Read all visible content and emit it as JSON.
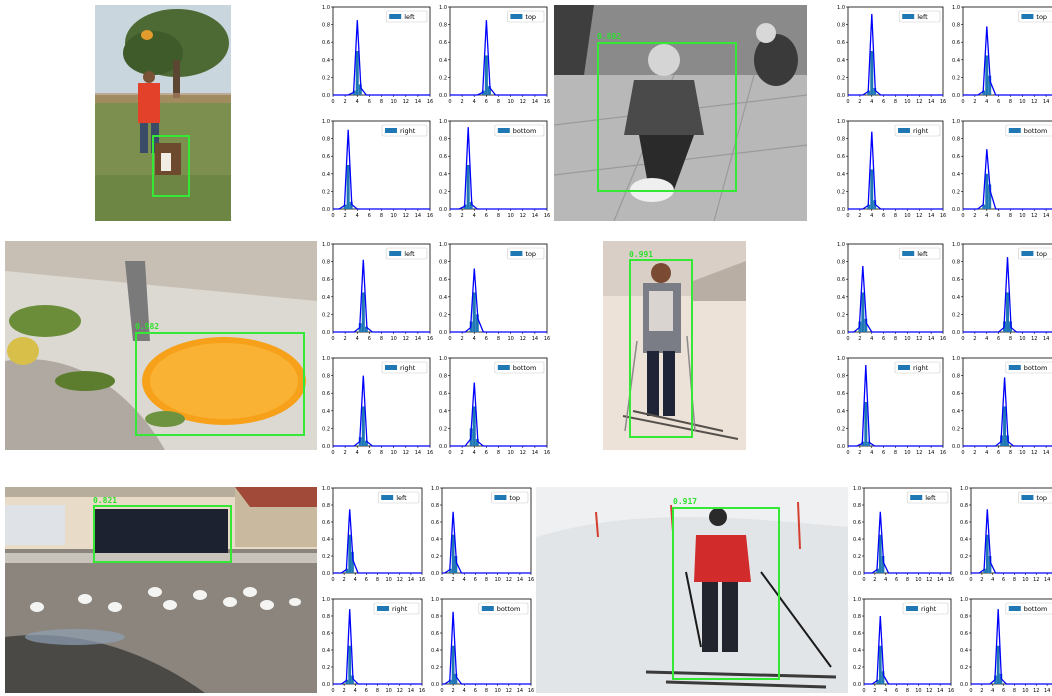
{
  "colors": {
    "bar": "#1f77b4",
    "line": "#0000ff",
    "box": "#35e835",
    "score": "#2fe02f"
  },
  "x_ticks": [
    "0",
    "2",
    "4",
    "6",
    "8",
    "10",
    "12",
    "14",
    "16"
  ],
  "y_ticks": [
    "0.0",
    "0.2",
    "0.4",
    "0.6",
    "0.8",
    "1.0"
  ],
  "examples": [
    {
      "image": "man-and-dog-in-park",
      "score": "",
      "chart_data": {
        "type": "bar",
        "xlim": [
          0,
          16
        ],
        "ylim": [
          0,
          1.0
        ],
        "series": [
          {
            "name": "left",
            "bars": [
              [
                3.5,
                0.05
              ],
              [
                4,
                0.5
              ],
              [
                4.5,
                0.12
              ]
            ],
            "line": [
              [
                2.5,
                0
              ],
              [
                3.4,
                0.03
              ],
              [
                4,
                0.85
              ],
              [
                4.6,
                0.08
              ],
              [
                5.5,
                0
              ]
            ]
          },
          {
            "name": "top",
            "bars": [
              [
                5.5,
                0.05
              ],
              [
                6,
                0.45
              ],
              [
                6.5,
                0.1
              ]
            ],
            "line": [
              [
                4.5,
                0
              ],
              [
                5.4,
                0.03
              ],
              [
                6,
                0.85
              ],
              [
                6.6,
                0.08
              ],
              [
                7.5,
                0
              ]
            ]
          },
          {
            "name": "right",
            "bars": [
              [
                2,
                0.05
              ],
              [
                2.5,
                0.5
              ],
              [
                3,
                0.08
              ]
            ],
            "line": [
              [
                1,
                0
              ],
              [
                1.9,
                0.04
              ],
              [
                2.5,
                0.9
              ],
              [
                3.1,
                0.05
              ],
              [
                4,
                0
              ]
            ]
          },
          {
            "name": "bottom",
            "bars": [
              [
                2.5,
                0.05
              ],
              [
                3,
                0.5
              ],
              [
                3.5,
                0.08
              ]
            ],
            "line": [
              [
                1.5,
                0
              ],
              [
                2.4,
                0.03
              ],
              [
                3,
                0.93
              ],
              [
                3.6,
                0.05
              ],
              [
                4.5,
                0
              ]
            ]
          }
        ]
      }
    },
    {
      "image": "boy-on-sled-black-and-white",
      "score": "0.892",
      "chart_data": {
        "type": "bar",
        "xlim": [
          0,
          16
        ],
        "ylim": [
          0,
          1.0
        ],
        "series": [
          {
            "name": "left",
            "bars": [
              [
                3.5,
                0.05
              ],
              [
                4,
                0.5
              ],
              [
                4.5,
                0.08
              ]
            ],
            "line": [
              [
                2.5,
                0
              ],
              [
                3.4,
                0.04
              ],
              [
                4,
                0.92
              ],
              [
                4.6,
                0.05
              ],
              [
                5.5,
                0
              ]
            ]
          },
          {
            "name": "top",
            "bars": [
              [
                3.5,
                0.05
              ],
              [
                4,
                0.45
              ],
              [
                4.5,
                0.22
              ]
            ],
            "line": [
              [
                2.5,
                0
              ],
              [
                3.4,
                0.04
              ],
              [
                4,
                0.78
              ],
              [
                4.6,
                0.15
              ],
              [
                5.5,
                0
              ]
            ]
          },
          {
            "name": "right",
            "bars": [
              [
                3.5,
                0.05
              ],
              [
                4,
                0.45
              ],
              [
                4.5,
                0.1
              ]
            ],
            "line": [
              [
                2.5,
                0
              ],
              [
                3.4,
                0.04
              ],
              [
                4,
                0.88
              ],
              [
                4.6,
                0.05
              ],
              [
                5.5,
                0
              ]
            ]
          },
          {
            "name": "bottom",
            "bars": [
              [
                3.5,
                0.05
              ],
              [
                4,
                0.4
              ],
              [
                4.5,
                0.28
              ]
            ],
            "line": [
              [
                2.5,
                0
              ],
              [
                3.4,
                0.05
              ],
              [
                4,
                0.68
              ],
              [
                4.6,
                0.2
              ],
              [
                5.5,
                0
              ]
            ]
          }
        ]
      }
    },
    {
      "image": "orange-slice-on-plate",
      "score": "0.982",
      "chart_data": {
        "type": "bar",
        "xlim": [
          0,
          16
        ],
        "ylim": [
          0,
          1.0
        ],
        "series": [
          {
            "name": "left",
            "bars": [
              [
                4.5,
                0.1
              ],
              [
                5,
                0.45
              ],
              [
                5.5,
                0.06
              ]
            ],
            "line": [
              [
                3.5,
                0
              ],
              [
                4.4,
                0.05
              ],
              [
                5,
                0.82
              ],
              [
                5.6,
                0.05
              ],
              [
                6.5,
                0
              ]
            ]
          },
          {
            "name": "top",
            "bars": [
              [
                3.5,
                0.12
              ],
              [
                4,
                0.45
              ],
              [
                4.5,
                0.2
              ]
            ],
            "line": [
              [
                2.5,
                0
              ],
              [
                3.4,
                0.05
              ],
              [
                4,
                0.72
              ],
              [
                4.6,
                0.15
              ],
              [
                5.5,
                0
              ]
            ]
          },
          {
            "name": "right",
            "bars": [
              [
                4.5,
                0.1
              ],
              [
                5,
                0.45
              ],
              [
                5.5,
                0.06
              ]
            ],
            "line": [
              [
                3.5,
                0
              ],
              [
                4.4,
                0.05
              ],
              [
                5,
                0.8
              ],
              [
                5.6,
                0.05
              ],
              [
                6.5,
                0
              ]
            ]
          },
          {
            "name": "bottom",
            "bars": [
              [
                3.5,
                0.2
              ],
              [
                4,
                0.45
              ],
              [
                4.5,
                0.08
              ]
            ],
            "line": [
              [
                2.5,
                0
              ],
              [
                3.4,
                0.08
              ],
              [
                4,
                0.72
              ],
              [
                4.6,
                0.05
              ],
              [
                5.5,
                0
              ]
            ]
          }
        ]
      }
    },
    {
      "image": "woman-skier-in-snow",
      "score": "0.991",
      "chart_data": {
        "type": "bar",
        "xlim": [
          0,
          16
        ],
        "ylim": [
          0,
          1.0
        ],
        "series": [
          {
            "name": "left",
            "bars": [
              [
                2,
                0.12
              ],
              [
                2.5,
                0.45
              ],
              [
                3,
                0.15
              ]
            ],
            "line": [
              [
                1,
                0
              ],
              [
                1.9,
                0.05
              ],
              [
                2.5,
                0.75
              ],
              [
                3.1,
                0.1
              ],
              [
                4,
                0
              ]
            ]
          },
          {
            "name": "top",
            "bars": [
              [
                7,
                0.12
              ],
              [
                7.5,
                0.45
              ],
              [
                8,
                0.12
              ]
            ],
            "line": [
              [
                6,
                0
              ],
              [
                6.9,
                0.05
              ],
              [
                7.5,
                0.85
              ],
              [
                8.1,
                0.05
              ],
              [
                9,
                0
              ]
            ]
          },
          {
            "name": "right",
            "bars": [
              [
                2.5,
                0.05
              ],
              [
                3,
                0.5
              ],
              [
                3.5,
                0.05
              ]
            ],
            "line": [
              [
                1.5,
                0
              ],
              [
                2.4,
                0.03
              ],
              [
                3,
                0.92
              ],
              [
                3.6,
                0.04
              ],
              [
                4.5,
                0
              ]
            ]
          },
          {
            "name": "bottom",
            "bars": [
              [
                6.5,
                0.12
              ],
              [
                7,
                0.45
              ],
              [
                7.5,
                0.12
              ]
            ],
            "line": [
              [
                5.5,
                0
              ],
              [
                6.4,
                0.05
              ],
              [
                7,
                0.78
              ],
              [
                7.6,
                0.05
              ],
              [
                8.5,
                0
              ]
            ]
          }
        ]
      }
    },
    {
      "image": "truck-and-egrets-parking-lot",
      "score": "0.821",
      "chart_data": {
        "type": "bar",
        "xlim": [
          0,
          16
        ],
        "ylim": [
          0,
          1.0
        ],
        "series": [
          {
            "name": "left",
            "bars": [
              [
                2.5,
                0.05
              ],
              [
                3,
                0.45
              ],
              [
                3.5,
                0.25
              ]
            ],
            "line": [
              [
                1.5,
                0
              ],
              [
                2.4,
                0.04
              ],
              [
                3,
                0.75
              ],
              [
                3.6,
                0.15
              ],
              [
                4.5,
                0
              ]
            ]
          },
          {
            "name": "top",
            "bars": [
              [
                1.5,
                0.05
              ],
              [
                2,
                0.45
              ],
              [
                2.5,
                0.2
              ]
            ],
            "line": [
              [
                0.5,
                0
              ],
              [
                1.4,
                0.04
              ],
              [
                2,
                0.72
              ],
              [
                2.6,
                0.12
              ],
              [
                3.5,
                0
              ]
            ]
          },
          {
            "name": "right",
            "bars": [
              [
                2.5,
                0.05
              ],
              [
                3,
                0.45
              ],
              [
                3.5,
                0.1
              ]
            ],
            "line": [
              [
                1.5,
                0
              ],
              [
                2.4,
                0.04
              ],
              [
                3,
                0.88
              ],
              [
                3.6,
                0.06
              ],
              [
                4.5,
                0
              ]
            ]
          },
          {
            "name": "bottom",
            "bars": [
              [
                1.5,
                0.05
              ],
              [
                2,
                0.45
              ],
              [
                2.5,
                0.12
              ]
            ],
            "line": [
              [
                0.5,
                0
              ],
              [
                1.4,
                0.04
              ],
              [
                2,
                0.85
              ],
              [
                2.6,
                0.08
              ],
              [
                3.5,
                0
              ]
            ]
          }
        ]
      }
    },
    {
      "image": "skier-in-red-jacket",
      "score": "0.917",
      "chart_data": {
        "type": "bar",
        "xlim": [
          0,
          16
        ],
        "ylim": [
          0,
          1.0
        ],
        "series": [
          {
            "name": "left",
            "bars": [
              [
                2.5,
                0.05
              ],
              [
                3,
                0.45
              ],
              [
                3.5,
                0.2
              ]
            ],
            "line": [
              [
                1.5,
                0
              ],
              [
                2.4,
                0.04
              ],
              [
                3,
                0.72
              ],
              [
                3.6,
                0.12
              ],
              [
                4.5,
                0
              ]
            ]
          },
          {
            "name": "top",
            "bars": [
              [
                2.5,
                0.05
              ],
              [
                3,
                0.45
              ],
              [
                3.5,
                0.2
              ]
            ],
            "line": [
              [
                1.5,
                0
              ],
              [
                2.4,
                0.04
              ],
              [
                3,
                0.75
              ],
              [
                3.6,
                0.12
              ],
              [
                4.5,
                0
              ]
            ]
          },
          {
            "name": "right",
            "bars": [
              [
                2.5,
                0.05
              ],
              [
                3,
                0.45
              ],
              [
                3.5,
                0.15
              ]
            ],
            "line": [
              [
                1.5,
                0
              ],
              [
                2.4,
                0.04
              ],
              [
                3,
                0.8
              ],
              [
                3.6,
                0.1
              ],
              [
                4.5,
                0
              ]
            ]
          },
          {
            "name": "bottom",
            "bars": [
              [
                4.5,
                0.1
              ],
              [
                5,
                0.45
              ],
              [
                5.5,
                0.12
              ]
            ],
            "line": [
              [
                3.5,
                0
              ],
              [
                4.4,
                0.05
              ],
              [
                5,
                0.88
              ],
              [
                5.6,
                0.06
              ],
              [
                6.5,
                0
              ]
            ]
          }
        ]
      }
    }
  ]
}
